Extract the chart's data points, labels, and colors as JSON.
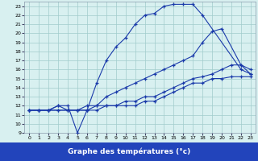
{
  "title": "Graphe des températures (°c)",
  "xlim": [
    -0.5,
    23.5
  ],
  "ylim": [
    9,
    23.5
  ],
  "xticks": [
    0,
    1,
    2,
    3,
    4,
    5,
    6,
    7,
    8,
    9,
    10,
    11,
    12,
    13,
    14,
    15,
    16,
    17,
    18,
    19,
    20,
    21,
    22,
    23
  ],
  "yticks": [
    9,
    10,
    11,
    12,
    13,
    14,
    15,
    16,
    17,
    18,
    19,
    20,
    21,
    22,
    23
  ],
  "bg_color": "#d8f0f0",
  "grid_color": "#a0cccc",
  "line_color": "#1a3aaa",
  "title_bg": "#2244bb",
  "title_color": "#ffffff",
  "line1_x": [
    0,
    1,
    2,
    3,
    4,
    5,
    6,
    7,
    8,
    9,
    10,
    11,
    12,
    13,
    14,
    15,
    16,
    17,
    18,
    22,
    23
  ],
  "line1_y": [
    11.5,
    11.5,
    11.5,
    12.0,
    12.0,
    9.0,
    11.5,
    14.5,
    17.0,
    18.5,
    19.5,
    21.0,
    22.0,
    22.2,
    23.0,
    23.2,
    23.2,
    23.2,
    22.0,
    16.0,
    15.5
  ],
  "line2_x": [
    0,
    1,
    2,
    3,
    4,
    5,
    6,
    7,
    8,
    9,
    10,
    11,
    12,
    13,
    14,
    15,
    16,
    17,
    18,
    19,
    20,
    22,
    23
  ],
  "line2_y": [
    11.5,
    11.5,
    11.5,
    12.0,
    11.5,
    11.5,
    12.0,
    12.0,
    13.0,
    13.5,
    14.0,
    14.5,
    15.0,
    15.5,
    16.0,
    16.5,
    17.0,
    17.5,
    19.0,
    20.2,
    20.5,
    16.5,
    15.5
  ],
  "line3_x": [
    0,
    1,
    2,
    3,
    4,
    5,
    6,
    7,
    8,
    9,
    10,
    11,
    12,
    13,
    14,
    15,
    16,
    17,
    18,
    19,
    20,
    21,
    22,
    23
  ],
  "line3_y": [
    11.5,
    11.5,
    11.5,
    11.5,
    11.5,
    11.5,
    11.5,
    12.0,
    12.0,
    12.0,
    12.5,
    12.5,
    13.0,
    13.0,
    13.5,
    14.0,
    14.5,
    15.0,
    15.2,
    15.5,
    16.0,
    16.5,
    16.5,
    16.0
  ],
  "line4_x": [
    0,
    1,
    2,
    3,
    4,
    5,
    6,
    7,
    8,
    9,
    10,
    11,
    12,
    13,
    14,
    15,
    16,
    17,
    18,
    19,
    20,
    21,
    22,
    23
  ],
  "line4_y": [
    11.5,
    11.5,
    11.5,
    11.5,
    11.5,
    11.5,
    11.5,
    11.5,
    12.0,
    12.0,
    12.0,
    12.0,
    12.5,
    12.5,
    13.0,
    13.5,
    14.0,
    14.5,
    14.5,
    15.0,
    15.0,
    15.2,
    15.2,
    15.2
  ]
}
